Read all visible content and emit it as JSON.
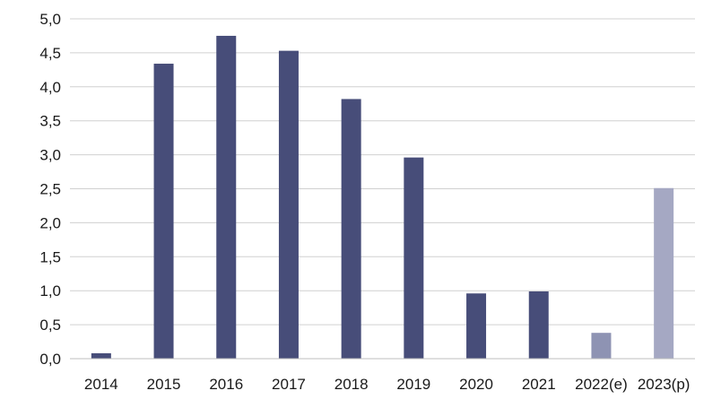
{
  "chart_data": {
    "type": "bar",
    "title": "",
    "xlabel": "",
    "ylabel": "",
    "categories": [
      "2014",
      "2015",
      "2016",
      "2017",
      "2018",
      "2019",
      "2020",
      "2021",
      "2022(e)",
      "2023(p)"
    ],
    "values": [
      0.08,
      4.34,
      4.75,
      4.53,
      3.82,
      2.96,
      0.96,
      0.99,
      0.38,
      2.51
    ],
    "ylim": [
      0,
      5
    ],
    "ytick_step": 0.5,
    "ytick_labels": [
      "0,0",
      "0,5",
      "1,0",
      "1,5",
      "2,0",
      "2,5",
      "3,0",
      "3,5",
      "4,0",
      "4,5",
      "5,0"
    ],
    "grid": true,
    "legend": "none",
    "colors": {
      "actual": "#474d79",
      "estimate": "#8e93b3",
      "projection": "#a5a8c3",
      "grid": "#d0d0d0"
    },
    "bar_colors": [
      "actual",
      "actual",
      "actual",
      "actual",
      "actual",
      "actual",
      "actual",
      "actual",
      "estimate",
      "projection"
    ]
  }
}
